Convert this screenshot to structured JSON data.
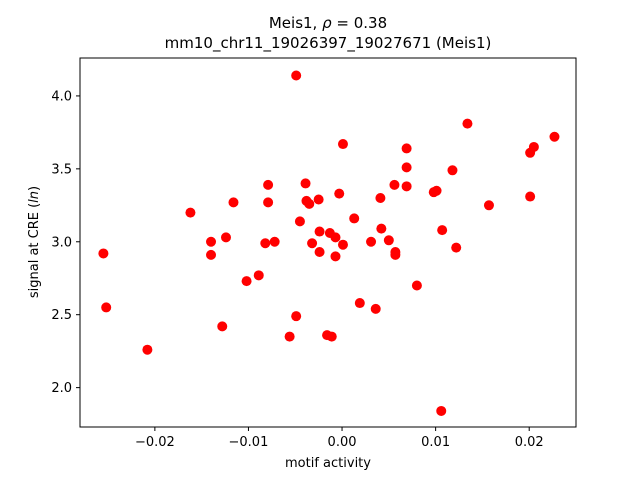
{
  "chart_data": {
    "type": "scatter",
    "title_line1_prefix": "Meis1, ",
    "title_line1_rho": "ρ",
    "title_line1_suffix": " = 0.38",
    "title_line2": "mm10_chr11_19026397_19027671 (Meis1)",
    "xlabel": "motif activity",
    "ylabel_prefix": "signal at CRE (",
    "ylabel_italic": "ln",
    "ylabel_suffix": ")",
    "xlim": [
      -0.028,
      0.025
    ],
    "ylim": [
      1.73,
      4.26
    ],
    "x_ticks": [
      -0.02,
      -0.01,
      0.0,
      0.01,
      0.02
    ],
    "x_tick_labels": [
      "−0.02",
      "−0.01",
      "0.00",
      "0.01",
      "0.02"
    ],
    "y_ticks": [
      2.0,
      2.5,
      3.0,
      3.5,
      4.0
    ],
    "y_tick_labels": [
      "2.0",
      "2.5",
      "3.0",
      "3.5",
      "4.0"
    ],
    "grid": false,
    "marker_color": "#ff0000",
    "points": [
      {
        "x": -0.0255,
        "y": 2.92
      },
      {
        "x": -0.0252,
        "y": 2.55
      },
      {
        "x": -0.0208,
        "y": 2.26
      },
      {
        "x": -0.0162,
        "y": 3.2
      },
      {
        "x": -0.014,
        "y": 3.0
      },
      {
        "x": -0.014,
        "y": 2.91
      },
      {
        "x": -0.0128,
        "y": 2.42
      },
      {
        "x": -0.0124,
        "y": 3.03
      },
      {
        "x": -0.0116,
        "y": 3.27
      },
      {
        "x": -0.0102,
        "y": 2.73
      },
      {
        "x": -0.0089,
        "y": 2.77
      },
      {
        "x": -0.0082,
        "y": 2.99
      },
      {
        "x": -0.0079,
        "y": 3.39
      },
      {
        "x": -0.0079,
        "y": 3.27
      },
      {
        "x": -0.0072,
        "y": 3.0
      },
      {
        "x": -0.0056,
        "y": 2.35
      },
      {
        "x": -0.0049,
        "y": 4.14
      },
      {
        "x": -0.0049,
        "y": 2.49
      },
      {
        "x": -0.0045,
        "y": 3.14
      },
      {
        "x": -0.0039,
        "y": 3.4
      },
      {
        "x": -0.0038,
        "y": 3.28
      },
      {
        "x": -0.0035,
        "y": 3.26
      },
      {
        "x": -0.0032,
        "y": 2.99
      },
      {
        "x": -0.0025,
        "y": 3.29
      },
      {
        "x": -0.0024,
        "y": 3.07
      },
      {
        "x": -0.0024,
        "y": 2.93
      },
      {
        "x": -0.0016,
        "y": 2.36
      },
      {
        "x": -0.0013,
        "y": 3.06
      },
      {
        "x": -0.0011,
        "y": 2.35
      },
      {
        "x": -0.0007,
        "y": 3.03
      },
      {
        "x": -0.0007,
        "y": 2.9
      },
      {
        "x": -0.0003,
        "y": 3.33
      },
      {
        "x": 0.0001,
        "y": 3.67
      },
      {
        "x": 0.0001,
        "y": 2.98
      },
      {
        "x": 0.0013,
        "y": 3.16
      },
      {
        "x": 0.0019,
        "y": 2.58
      },
      {
        "x": 0.0031,
        "y": 3.0
      },
      {
        "x": 0.0036,
        "y": 2.54
      },
      {
        "x": 0.0041,
        "y": 3.3
      },
      {
        "x": 0.0042,
        "y": 3.09
      },
      {
        "x": 0.005,
        "y": 3.01
      },
      {
        "x": 0.0056,
        "y": 3.39
      },
      {
        "x": 0.0057,
        "y": 2.93
      },
      {
        "x": 0.0057,
        "y": 2.91
      },
      {
        "x": 0.0069,
        "y": 3.64
      },
      {
        "x": 0.0069,
        "y": 3.51
      },
      {
        "x": 0.0069,
        "y": 3.38
      },
      {
        "x": 0.008,
        "y": 2.7
      },
      {
        "x": 0.0098,
        "y": 3.34
      },
      {
        "x": 0.0101,
        "y": 3.35
      },
      {
        "x": 0.0106,
        "y": 1.84
      },
      {
        "x": 0.0107,
        "y": 3.08
      },
      {
        "x": 0.0118,
        "y": 3.49
      },
      {
        "x": 0.0122,
        "y": 2.96
      },
      {
        "x": 0.0134,
        "y": 3.81
      },
      {
        "x": 0.0157,
        "y": 3.25
      },
      {
        "x": 0.0201,
        "y": 3.61
      },
      {
        "x": 0.0201,
        "y": 3.31
      },
      {
        "x": 0.0205,
        "y": 3.65
      },
      {
        "x": 0.0227,
        "y": 3.72
      }
    ]
  }
}
